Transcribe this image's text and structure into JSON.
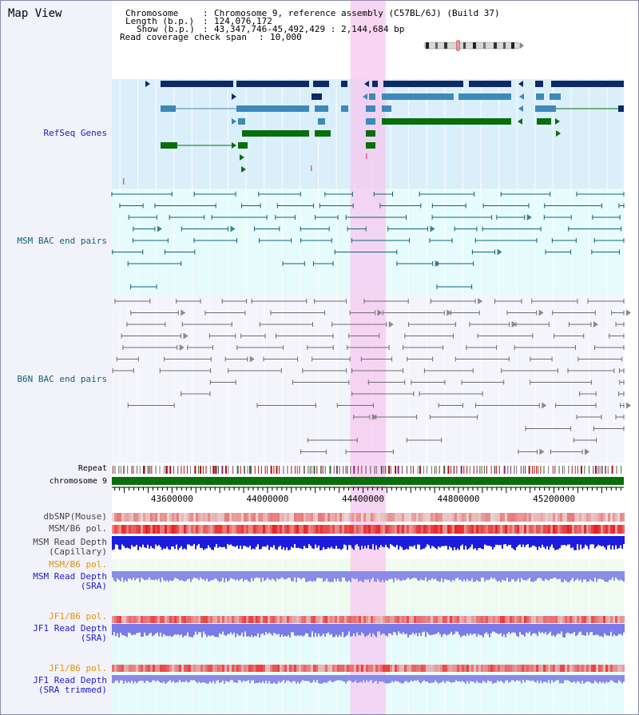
{
  "map_view": {
    "title": "Map View",
    "info": {
      "chromosome_label": "Chromosome",
      "chromosome_value": "Chromosome 9, reference assembly (C57BL/6J) (Build 37)",
      "length_label": "Length (b.p.)",
      "length_value": "124,076,172",
      "show_label": "Show (b.p.)",
      "show_value": "43,347,746-45,492,429 : 2,144,684 bp",
      "coverage_label": "Read coverage check span",
      "coverage_value": "10,000"
    },
    "axis": {
      "start_bp": 43347746,
      "end_bp": 45492429,
      "ticks": [
        "43600000",
        "44000000",
        "44400000",
        "44800000",
        "45200000"
      ],
      "highlight_bp": [
        44347000,
        44495000
      ]
    },
    "tracks": {
      "refseq": {
        "label": "RefSeq Genes",
        "color": "#1a1acc",
        "dark": "#0d2a66",
        "mid": "#3c8ab8",
        "green": "#0a6e0a"
      },
      "msm_bac": {
        "label": "MSM BAC end pairs",
        "color": "#106478"
      },
      "b6n_bac": {
        "label": "B6N BAC end pairs",
        "color": "#106478"
      },
      "repeat": {
        "label": "Repeat"
      },
      "chromosome": {
        "label": "chromosome 9",
        "color": "#0a6e0a"
      },
      "dbsnp": {
        "label": "dbSNP(Mouse)"
      },
      "msm_b6_pol_1": {
        "label": "MSM/B6 pol."
      },
      "msm_depth_cap": {
        "label": "MSM Read Depth\n(Capillary)"
      },
      "msm_b6_pol_2": {
        "label": "MSM/B6 pol.",
        "color": "#e69500"
      },
      "msm_depth_sra": {
        "label": "MSM Read Depth\n(SRA)",
        "color": "#1a1acc"
      },
      "jf1_b6_pol_1": {
        "label": "JF1/B6 pol.",
        "color": "#e69500"
      },
      "jf1_depth_sra": {
        "label": "JF1 Read Depth\n(SRA)",
        "color": "#1a1acc"
      },
      "jf1_b6_pol_2": {
        "label": "JF1/B6 pol.",
        "color": "#e69500"
      },
      "jf1_depth_trim": {
        "label": "JF1 Read Depth\n(SRA trimmed)",
        "color": "#1a1acc"
      }
    }
  }
}
